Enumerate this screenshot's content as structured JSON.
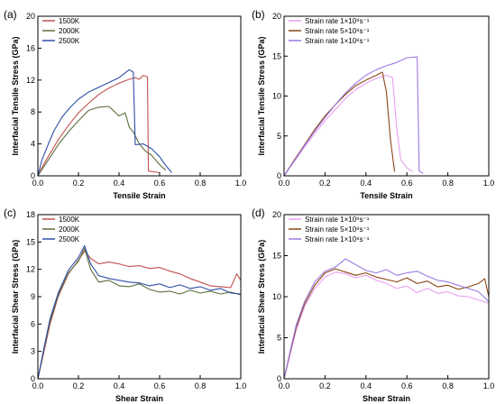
{
  "chart_data": [
    {
      "label": "(a)",
      "type": "line",
      "xlabel": "Tensile Strain",
      "ylabel": "Interfacial Tensile Stress (GPa)",
      "xlim": [
        0,
        1.0
      ],
      "ylim": [
        0,
        20
      ],
      "xticks": [
        "0.0",
        "0.2",
        "0.4",
        "0.6",
        "0.8",
        "1.0"
      ],
      "yticks": [
        "0",
        "4",
        "8",
        "12",
        "16",
        "20"
      ],
      "legend_position": "top-left",
      "series": [
        {
          "name": "1500K",
          "color": "#c0504d",
          "points": [
            [
              0,
              0
            ],
            [
              0.03,
              1.5
            ],
            [
              0.06,
              2.8
            ],
            [
              0.1,
              4.5
            ],
            [
              0.15,
              6.3
            ],
            [
              0.2,
              7.9
            ],
            [
              0.25,
              9.1
            ],
            [
              0.3,
              10.2
            ],
            [
              0.35,
              11.0
            ],
            [
              0.4,
              11.6
            ],
            [
              0.45,
              12.1
            ],
            [
              0.48,
              12.3
            ],
            [
              0.5,
              12.1
            ],
            [
              0.52,
              12.6
            ],
            [
              0.54,
              12.4
            ],
            [
              0.545,
              0.6
            ],
            [
              0.6,
              0.4
            ]
          ]
        },
        {
          "name": "2000K",
          "color": "#5a6e3c",
          "points": [
            [
              0,
              0
            ],
            [
              0.03,
              1.2
            ],
            [
              0.06,
              2.3
            ],
            [
              0.1,
              3.9
            ],
            [
              0.15,
              5.5
            ],
            [
              0.2,
              6.9
            ],
            [
              0.25,
              8.2
            ],
            [
              0.3,
              8.6
            ],
            [
              0.35,
              8.7
            ],
            [
              0.4,
              7.5
            ],
            [
              0.43,
              7.9
            ],
            [
              0.45,
              6.1
            ],
            [
              0.47,
              5.5
            ],
            [
              0.5,
              4.0
            ],
            [
              0.53,
              3.1
            ],
            [
              0.56,
              2.6
            ],
            [
              0.6,
              1.4
            ],
            [
              0.63,
              0.7
            ]
          ]
        },
        {
          "name": "2500K",
          "color": "#2f4fa8",
          "points": [
            [
              0,
              0
            ],
            [
              0.02,
              2.0
            ],
            [
              0.05,
              3.9
            ],
            [
              0.08,
              5.7
            ],
            [
              0.12,
              7.4
            ],
            [
              0.16,
              8.6
            ],
            [
              0.2,
              9.6
            ],
            [
              0.25,
              10.5
            ],
            [
              0.3,
              11.1
            ],
            [
              0.35,
              11.7
            ],
            [
              0.4,
              12.3
            ],
            [
              0.45,
              13.3
            ],
            [
              0.47,
              13.0
            ],
            [
              0.48,
              3.9
            ],
            [
              0.52,
              4.0
            ],
            [
              0.56,
              3.4
            ],
            [
              0.6,
              2.4
            ],
            [
              0.63,
              1.3
            ],
            [
              0.66,
              0.4
            ]
          ]
        }
      ]
    },
    {
      "label": "(b)",
      "type": "line",
      "xlabel": "Tensile Strain",
      "ylabel": "Interfacial Tensile Stress (GPa)",
      "xlim": [
        0,
        1.0
      ],
      "ylim": [
        0,
        20
      ],
      "xticks": [
        "0.0",
        "0.2",
        "0.4",
        "0.6",
        "0.8",
        "1.0"
      ],
      "yticks": [
        "0",
        "5",
        "10",
        "15",
        "20"
      ],
      "legend_position": "top-left",
      "series": [
        {
          "name": "Strain rate 1×10⁹s⁻¹",
          "color": "#e9a0f0",
          "points": [
            [
              0,
              0
            ],
            [
              0.05,
              1.8
            ],
            [
              0.1,
              3.6
            ],
            [
              0.15,
              5.3
            ],
            [
              0.2,
              6.9
            ],
            [
              0.25,
              8.3
            ],
            [
              0.3,
              9.7
            ],
            [
              0.35,
              10.8
            ],
            [
              0.4,
              11.6
            ],
            [
              0.45,
              12.2
            ],
            [
              0.5,
              12.6
            ],
            [
              0.53,
              12.3
            ],
            [
              0.55,
              6.0
            ],
            [
              0.57,
              2.0
            ],
            [
              0.6,
              1.0
            ],
            [
              0.63,
              0.5
            ]
          ]
        },
        {
          "name": "Strain rate 5×10⁸s⁻¹",
          "color": "#8b4513",
          "points": [
            [
              0,
              0
            ],
            [
              0.05,
              2.0
            ],
            [
              0.1,
              3.9
            ],
            [
              0.15,
              5.8
            ],
            [
              0.2,
              7.5
            ],
            [
              0.25,
              8.9
            ],
            [
              0.3,
              10.2
            ],
            [
              0.35,
              11.3
            ],
            [
              0.4,
              12.0
            ],
            [
              0.45,
              12.6
            ],
            [
              0.48,
              13.0
            ],
            [
              0.5,
              10.5
            ],
            [
              0.52,
              4.5
            ],
            [
              0.54,
              0.5
            ]
          ]
        },
        {
          "name": "Strain rate 1×10⁸s⁻¹",
          "color": "#9b7ae0",
          "points": [
            [
              0,
              0
            ],
            [
              0.05,
              1.9
            ],
            [
              0.1,
              3.8
            ],
            [
              0.15,
              5.6
            ],
            [
              0.2,
              7.3
            ],
            [
              0.25,
              8.9
            ],
            [
              0.3,
              10.4
            ],
            [
              0.35,
              11.6
            ],
            [
              0.4,
              12.6
            ],
            [
              0.45,
              13.3
            ],
            [
              0.5,
              13.8
            ],
            [
              0.55,
              14.2
            ],
            [
              0.6,
              14.8
            ],
            [
              0.65,
              14.9
            ],
            [
              0.66,
              0.6
            ],
            [
              0.68,
              0.3
            ]
          ]
        }
      ]
    },
    {
      "label": "(c)",
      "type": "line",
      "xlabel": "Shear Strain",
      "ylabel": "Interfacial Shear Stress (GPa)",
      "xlim": [
        0,
        1.0
      ],
      "ylim": [
        0,
        18
      ],
      "xticks": [
        "0.0",
        "0.2",
        "0.4",
        "0.6",
        "0.8",
        "1.0"
      ],
      "yticks": [
        "0",
        "3",
        "6",
        "9",
        "12",
        "15",
        "18"
      ],
      "legend_position": "top-left",
      "series": [
        {
          "name": "1500K",
          "color": "#c0504d",
          "points": [
            [
              0,
              0
            ],
            [
              0.03,
              3.0
            ],
            [
              0.06,
              6.0
            ],
            [
              0.1,
              9.0
            ],
            [
              0.15,
              11.5
            ],
            [
              0.2,
              13.0
            ],
            [
              0.23,
              14.0
            ],
            [
              0.26,
              13.2
            ],
            [
              0.3,
              12.6
            ],
            [
              0.35,
              12.8
            ],
            [
              0.4,
              12.6
            ],
            [
              0.45,
              12.3
            ],
            [
              0.5,
              12.4
            ],
            [
              0.55,
              12.1
            ],
            [
              0.6,
              12.2
            ],
            [
              0.65,
              11.8
            ],
            [
              0.7,
              11.5
            ],
            [
              0.75,
              11.0
            ],
            [
              0.8,
              10.6
            ],
            [
              0.85,
              10.2
            ],
            [
              0.9,
              10.1
            ],
            [
              0.95,
              10.0
            ],
            [
              0.98,
              11.5
            ],
            [
              1.0,
              10.8
            ]
          ]
        },
        {
          "name": "2000K",
          "color": "#5a6e3c",
          "points": [
            [
              0,
              0
            ],
            [
              0.03,
              3.2
            ],
            [
              0.06,
              6.3
            ],
            [
              0.1,
              9.2
            ],
            [
              0.15,
              11.6
            ],
            [
              0.2,
              12.9
            ],
            [
              0.23,
              14.3
            ],
            [
              0.26,
              12.0
            ],
            [
              0.3,
              10.6
            ],
            [
              0.35,
              10.8
            ],
            [
              0.4,
              10.2
            ],
            [
              0.45,
              10.1
            ],
            [
              0.5,
              10.4
            ],
            [
              0.55,
              9.8
            ],
            [
              0.6,
              9.5
            ],
            [
              0.65,
              9.6
            ],
            [
              0.7,
              9.3
            ],
            [
              0.75,
              9.7
            ],
            [
              0.8,
              9.4
            ],
            [
              0.85,
              9.6
            ],
            [
              0.9,
              9.3
            ],
            [
              0.95,
              9.5
            ],
            [
              1.0,
              9.2
            ]
          ]
        },
        {
          "name": "2500K",
          "color": "#2f4fa8",
          "points": [
            [
              0,
              0
            ],
            [
              0.03,
              3.4
            ],
            [
              0.06,
              6.6
            ],
            [
              0.1,
              9.4
            ],
            [
              0.15,
              11.9
            ],
            [
              0.2,
              13.3
            ],
            [
              0.23,
              14.6
            ],
            [
              0.26,
              12.6
            ],
            [
              0.3,
              11.3
            ],
            [
              0.35,
              11.0
            ],
            [
              0.4,
              10.8
            ],
            [
              0.45,
              10.6
            ],
            [
              0.5,
              10.5
            ],
            [
              0.55,
              10.2
            ],
            [
              0.6,
              10.4
            ],
            [
              0.65,
              10.0
            ],
            [
              0.7,
              10.3
            ],
            [
              0.75,
              9.9
            ],
            [
              0.8,
              10.1
            ],
            [
              0.85,
              9.7
            ],
            [
              0.9,
              9.9
            ],
            [
              0.95,
              9.4
            ],
            [
              1.0,
              9.3
            ]
          ]
        }
      ]
    },
    {
      "label": "(d)",
      "type": "line",
      "xlabel": "Shear Strain",
      "ylabel": "Interfacial Shear Stress (GPa)",
      "xlim": [
        0,
        1.0
      ],
      "ylim": [
        0,
        20
      ],
      "xticks": [
        "0.0",
        "0.2",
        "0.4",
        "0.6",
        "0.8",
        "1.0"
      ],
      "yticks": [
        "0",
        "5",
        "10",
        "15",
        "20"
      ],
      "legend_position": "top-left",
      "series": [
        {
          "name": "Strain rate 1×10⁹s⁻¹",
          "color": "#e9a0f0",
          "points": [
            [
              0,
              0
            ],
            [
              0.03,
              3.0
            ],
            [
              0.06,
              6.0
            ],
            [
              0.1,
              8.8
            ],
            [
              0.15,
              11.0
            ],
            [
              0.2,
              12.4
            ],
            [
              0.25,
              13.0
            ],
            [
              0.3,
              12.8
            ],
            [
              0.35,
              12.3
            ],
            [
              0.4,
              12.6
            ],
            [
              0.45,
              12.0
            ],
            [
              0.5,
              11.6
            ],
            [
              0.55,
              11.0
            ],
            [
              0.6,
              11.3
            ],
            [
              0.65,
              10.5
            ],
            [
              0.7,
              11.0
            ],
            [
              0.75,
              10.4
            ],
            [
              0.8,
              10.6
            ],
            [
              0.85,
              10.1
            ],
            [
              0.9,
              10.0
            ],
            [
              0.95,
              9.6
            ],
            [
              1.0,
              9.2
            ]
          ]
        },
        {
          "name": "Strain rate 5×10⁸s⁻¹",
          "color": "#8b4513",
          "points": [
            [
              0,
              0
            ],
            [
              0.03,
              3.2
            ],
            [
              0.06,
              6.3
            ],
            [
              0.1,
              9.1
            ],
            [
              0.15,
              11.4
            ],
            [
              0.2,
              12.9
            ],
            [
              0.25,
              13.4
            ],
            [
              0.3,
              13.0
            ],
            [
              0.35,
              12.6
            ],
            [
              0.4,
              12.9
            ],
            [
              0.45,
              12.4
            ],
            [
              0.5,
              12.1
            ],
            [
              0.55,
              11.8
            ],
            [
              0.6,
              12.3
            ],
            [
              0.65,
              11.6
            ],
            [
              0.7,
              11.9
            ],
            [
              0.75,
              11.2
            ],
            [
              0.8,
              11.4
            ],
            [
              0.85,
              10.9
            ],
            [
              0.9,
              11.2
            ],
            [
              0.95,
              11.6
            ],
            [
              0.98,
              12.2
            ],
            [
              1.0,
              10.0
            ]
          ]
        },
        {
          "name": "Strain rate 1×10⁸s⁻¹",
          "color": "#9b7ae0",
          "points": [
            [
              0,
              0
            ],
            [
              0.03,
              3.4
            ],
            [
              0.06,
              6.6
            ],
            [
              0.1,
              9.4
            ],
            [
              0.15,
              11.8
            ],
            [
              0.2,
              13.1
            ],
            [
              0.25,
              13.6
            ],
            [
              0.3,
              14.6
            ],
            [
              0.35,
              13.9
            ],
            [
              0.4,
              13.2
            ],
            [
              0.45,
              12.9
            ],
            [
              0.5,
              13.3
            ],
            [
              0.55,
              12.6
            ],
            [
              0.6,
              12.9
            ],
            [
              0.65,
              13.1
            ],
            [
              0.7,
              12.5
            ],
            [
              0.75,
              12.0
            ],
            [
              0.8,
              11.8
            ],
            [
              0.85,
              11.4
            ],
            [
              0.9,
              11.0
            ],
            [
              0.95,
              10.6
            ],
            [
              1.0,
              9.4
            ]
          ]
        }
      ]
    }
  ]
}
